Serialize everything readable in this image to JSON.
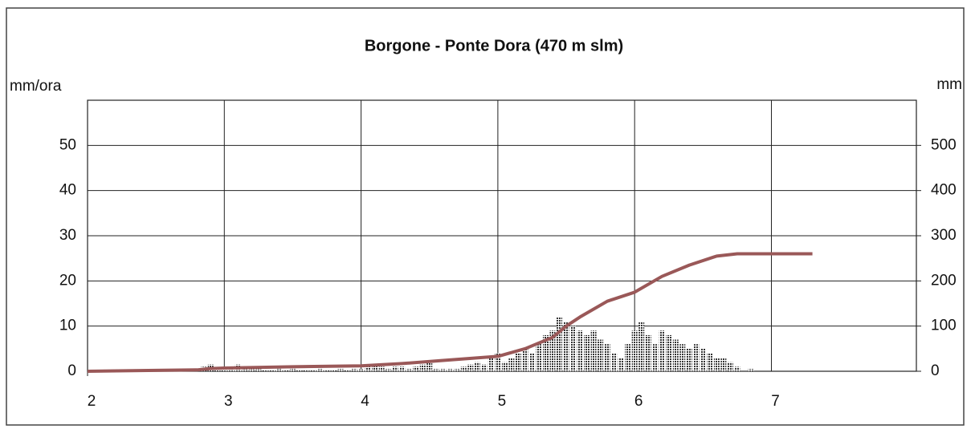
{
  "chart_data": {
    "type": "bar-line",
    "title": "Borgone - Ponte Dora (470 m slm)",
    "y_label": "mm/ora",
    "y2_label": "mm",
    "xlim": [
      2,
      8.06
    ],
    "xticks": [
      2,
      3,
      4,
      5,
      6,
      7
    ],
    "ylim": [
      0,
      60
    ],
    "yticks": [
      0,
      10,
      20,
      30,
      40,
      50
    ],
    "y2lim": [
      0,
      600
    ],
    "y2ticks": [
      0,
      100,
      200,
      300,
      400,
      500
    ],
    "grid": true,
    "series": [
      {
        "name": "mm/ora",
        "type": "bar",
        "color": "#333333",
        "x": [
          2.7,
          2.75,
          2.8,
          2.85,
          2.9,
          2.95,
          3.0,
          3.05,
          3.1,
          3.15,
          3.2,
          3.25,
          3.3,
          3.35,
          3.4,
          3.45,
          3.5,
          3.55,
          3.6,
          3.65,
          3.7,
          3.75,
          3.8,
          3.85,
          3.9,
          3.95,
          4.0,
          4.05,
          4.1,
          4.15,
          4.2,
          4.25,
          4.3,
          4.35,
          4.4,
          4.45,
          4.5,
          4.55,
          4.6,
          4.65,
          4.7,
          4.75,
          4.8,
          4.85,
          4.9,
          4.95,
          5.0,
          5.05,
          5.1,
          5.15,
          5.2,
          5.25,
          5.3,
          5.35,
          5.4,
          5.45,
          5.5,
          5.55,
          5.6,
          5.65,
          5.7,
          5.75,
          5.8,
          5.85,
          5.9,
          5.95,
          6.0,
          6.05,
          6.1,
          6.15,
          6.2,
          6.25,
          6.3,
          6.35,
          6.4,
          6.45,
          6.5,
          6.55,
          6.6,
          6.65,
          6.7,
          6.75,
          6.8,
          6.85
        ],
        "values": [
          0.5,
          0.5,
          0.5,
          1,
          1.5,
          0.5,
          0.5,
          0.5,
          1.5,
          0.5,
          0.5,
          0.5,
          0.3,
          0.3,
          0.5,
          0.3,
          0.5,
          0.3,
          0.3,
          0.3,
          0.5,
          0.3,
          0.3,
          0.5,
          0.3,
          0.5,
          0.5,
          1,
          1.5,
          1,
          0.5,
          1,
          1,
          0.5,
          1,
          1.5,
          2,
          0.5,
          0.5,
          0.5,
          0.5,
          1,
          1.5,
          2,
          1.5,
          3,
          4,
          2,
          3,
          4,
          5,
          4,
          6,
          8,
          9,
          12,
          11,
          10,
          9,
          8,
          9,
          7,
          6,
          4,
          3,
          6,
          9,
          11,
          8,
          6,
          9,
          8,
          7,
          6,
          5,
          6,
          5,
          4,
          3,
          3,
          2,
          1,
          0,
          0.5
        ]
      },
      {
        "name": "mm",
        "type": "line",
        "axis": "y2",
        "color": "#9a5858",
        "x": [
          2,
          2.5,
          2.8,
          2.9,
          3.0,
          3.5,
          4.0,
          4.3,
          4.6,
          5.0,
          5.2,
          5.4,
          5.5,
          5.6,
          5.8,
          6.0,
          6.2,
          6.4,
          6.6,
          6.75,
          7.3
        ],
        "values": [
          0,
          2,
          3,
          6,
          7,
          10,
          12,
          17,
          24,
          33,
          50,
          75,
          100,
          120,
          155,
          175,
          210,
          235,
          255,
          260,
          260
        ]
      }
    ]
  }
}
